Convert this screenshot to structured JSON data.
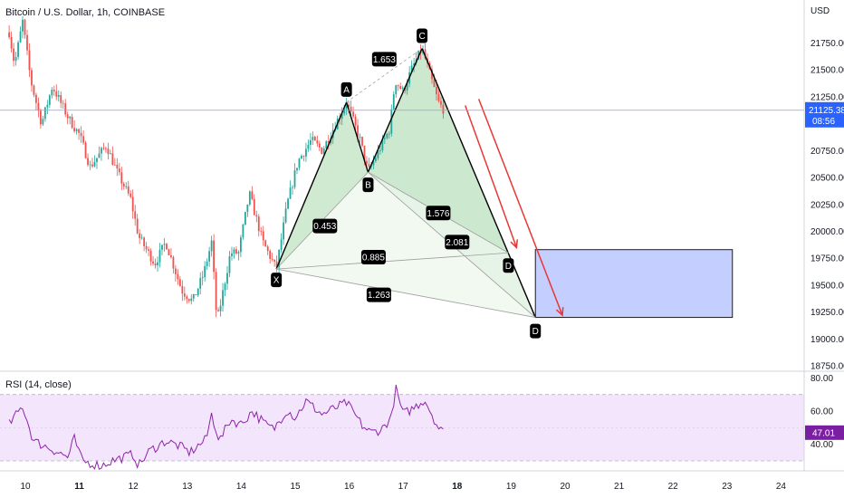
{
  "header": {
    "title": "Bitcoin / U.S. Dollar, 1h, COINBASE"
  },
  "rsi_pane": {
    "title": "RSI (14, close)"
  },
  "colors": {
    "up": "#26a69a",
    "down": "#ef5350",
    "pattern_fill": "#c8e6c9",
    "pattern_line": "#000000",
    "arrow": "#e53935",
    "target_box": "#c5cfff",
    "target_border": "#1a1a1a",
    "rsi_line": "#8e24aa",
    "rsi_band": "#f3e5fb",
    "price_line": "#9598f5",
    "badge_price": "#2962ff",
    "badge_rsi": "#7b1fa2"
  },
  "chart_data": {
    "type": "candlestick",
    "price_axis": {
      "unit_label": "USD",
      "ticks": [
        21750,
        21500,
        21250,
        21000,
        20750,
        20500,
        20250,
        20000,
        19750,
        19500,
        19250,
        19000,
        18750
      ],
      "ylim": [
        18700,
        22150
      ],
      "current_price": "21125.38",
      "countdown": "08:56"
    },
    "time_axis": {
      "ticks": [
        "10",
        "11",
        "12",
        "13",
        "14",
        "15",
        "16",
        "17",
        "18",
        "19",
        "20",
        "21",
        "22",
        "23",
        "24"
      ],
      "bold_ticks": [
        "11",
        "18"
      ]
    },
    "price_anchors": [
      {
        "d": 9.7,
        "p": 21850
      },
      {
        "d": 9.8,
        "p": 21550
      },
      {
        "d": 9.95,
        "p": 21950
      },
      {
        "d": 10.1,
        "p": 21400
      },
      {
        "d": 10.3,
        "p": 21000
      },
      {
        "d": 10.5,
        "p": 21350
      },
      {
        "d": 10.8,
        "p": 21050
      },
      {
        "d": 11.0,
        "p": 20900
      },
      {
        "d": 11.2,
        "p": 20600
      },
      {
        "d": 11.5,
        "p": 20800
      },
      {
        "d": 11.7,
        "p": 20550
      },
      {
        "d": 11.95,
        "p": 20300
      },
      {
        "d": 12.1,
        "p": 19950
      },
      {
        "d": 12.4,
        "p": 19700
      },
      {
        "d": 12.6,
        "p": 19900
      },
      {
        "d": 12.9,
        "p": 19450
      },
      {
        "d": 13.1,
        "p": 19350
      },
      {
        "d": 13.3,
        "p": 19600
      },
      {
        "d": 13.45,
        "p": 19900
      },
      {
        "d": 13.55,
        "p": 19150
      },
      {
        "d": 13.8,
        "p": 19800
      },
      {
        "d": 13.95,
        "p": 19800
      },
      {
        "d": 14.15,
        "p": 20350
      },
      {
        "d": 14.4,
        "p": 19900
      },
      {
        "d": 14.65,
        "p": 19650
      },
      {
        "d": 14.85,
        "p": 20250
      },
      {
        "d": 15.05,
        "p": 20650
      },
      {
        "d": 15.3,
        "p": 20850
      },
      {
        "d": 15.5,
        "p": 20750
      },
      {
        "d": 15.75,
        "p": 21000
      },
      {
        "d": 15.95,
        "p": 21200
      },
      {
        "d": 16.2,
        "p": 20850
      },
      {
        "d": 16.35,
        "p": 20550
      },
      {
        "d": 16.55,
        "p": 20750
      },
      {
        "d": 16.75,
        "p": 20950
      },
      {
        "d": 16.85,
        "p": 21400
      },
      {
        "d": 17.0,
        "p": 21300
      },
      {
        "d": 17.15,
        "p": 21500
      },
      {
        "d": 17.35,
        "p": 21700
      },
      {
        "d": 17.5,
        "p": 21450
      },
      {
        "d": 17.65,
        "p": 21200
      },
      {
        "d": 17.75,
        "p": 21130
      }
    ],
    "rsi": {
      "ticks": [
        80.0,
        60.0,
        40.0
      ],
      "band": [
        30,
        70
      ],
      "ylim": [
        24,
        84
      ],
      "current": "47.01",
      "anchors": [
        {
          "d": 9.7,
          "v": 52
        },
        {
          "d": 9.95,
          "v": 63
        },
        {
          "d": 10.15,
          "v": 42
        },
        {
          "d": 10.5,
          "v": 37
        },
        {
          "d": 10.8,
          "v": 32
        },
        {
          "d": 10.9,
          "v": 44
        },
        {
          "d": 11.05,
          "v": 30
        },
        {
          "d": 11.4,
          "v": 27
        },
        {
          "d": 11.6,
          "v": 30
        },
        {
          "d": 12.0,
          "v": 34
        },
        {
          "d": 12.1,
          "v": 27
        },
        {
          "d": 12.3,
          "v": 36
        },
        {
          "d": 12.6,
          "v": 42
        },
        {
          "d": 12.85,
          "v": 39
        },
        {
          "d": 13.05,
          "v": 35
        },
        {
          "d": 13.35,
          "v": 43
        },
        {
          "d": 13.45,
          "v": 58
        },
        {
          "d": 13.6,
          "v": 42
        },
        {
          "d": 13.8,
          "v": 55
        },
        {
          "d": 14.0,
          "v": 52
        },
        {
          "d": 14.2,
          "v": 60
        },
        {
          "d": 14.45,
          "v": 52
        },
        {
          "d": 14.6,
          "v": 49
        },
        {
          "d": 14.85,
          "v": 61
        },
        {
          "d": 15.0,
          "v": 56
        },
        {
          "d": 15.2,
          "v": 66
        },
        {
          "d": 15.5,
          "v": 58
        },
        {
          "d": 15.75,
          "v": 62
        },
        {
          "d": 15.95,
          "v": 65
        },
        {
          "d": 16.25,
          "v": 51
        },
        {
          "d": 16.4,
          "v": 47
        },
        {
          "d": 16.6,
          "v": 49
        },
        {
          "d": 16.8,
          "v": 57
        },
        {
          "d": 16.85,
          "v": 75
        },
        {
          "d": 17.0,
          "v": 58
        },
        {
          "d": 17.2,
          "v": 62
        },
        {
          "d": 17.4,
          "v": 67
        },
        {
          "d": 17.55,
          "v": 57
        },
        {
          "d": 17.65,
          "v": 50
        },
        {
          "d": 17.75,
          "v": 47
        }
      ]
    },
    "harmonic_pattern": {
      "type": "crab",
      "points": [
        {
          "label": "X",
          "d": 14.65,
          "p": 19650
        },
        {
          "label": "A",
          "d": 15.95,
          "p": 21200
        },
        {
          "label": "B",
          "d": 16.35,
          "p": 20550
        },
        {
          "label": "C",
          "d": 17.35,
          "p": 21700
        },
        {
          "label": "D",
          "d": 18.95,
          "p": 19800
        },
        {
          "label": "D",
          "d": 19.45,
          "p": 19200
        }
      ],
      "ratios": [
        {
          "label": "0.453",
          "d": 15.55,
          "p": 20050
        },
        {
          "label": "1.653",
          "d": 16.65,
          "p": 21600
        },
        {
          "label": "1.576",
          "d": 17.65,
          "p": 20170
        },
        {
          "label": "2.081",
          "d": 18.0,
          "p": 19900
        },
        {
          "label": "0.885",
          "d": 16.45,
          "p": 19760
        },
        {
          "label": "1.263",
          "d": 16.55,
          "p": 19410
        }
      ]
    },
    "target_zone": {
      "d_start": 19.45,
      "d_end": 23.1,
      "p_low": 19200,
      "p_high": 19830
    },
    "arrows": [
      {
        "d1": 18.15,
        "p1": 21170,
        "d2": 19.1,
        "p2": 19850
      },
      {
        "d1": 18.4,
        "p1": 21230,
        "d2": 19.95,
        "p2": 19220
      }
    ]
  }
}
